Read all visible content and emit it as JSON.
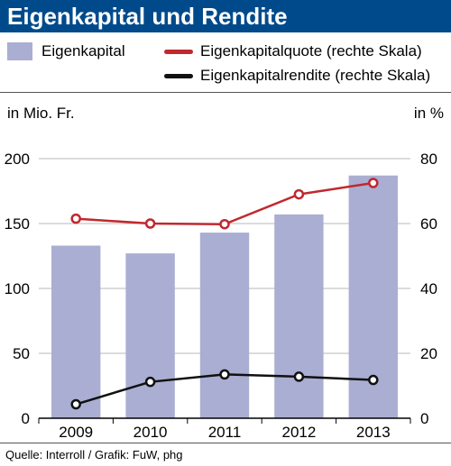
{
  "title": "Eigenkapital und Rendite",
  "legend": {
    "bar_label": "Eigenkapital",
    "line1_label": "Eigenkapitalquote (rechte Skala)",
    "line2_label": "Eigenkapitalrendite (rechte Skala)"
  },
  "units": {
    "left": "in Mio. Fr.",
    "right": "in %"
  },
  "source": "Quelle: Interroll / Grafik: FuW, phg",
  "colors": {
    "title_bg": "#004a8c",
    "bars": "#aaaed2",
    "quote": "#c0282d",
    "rendite": "#111111"
  },
  "chart_data": {
    "type": "bar",
    "categories": [
      "2009",
      "2010",
      "2011",
      "2012",
      "2013"
    ],
    "series": [
      {
        "name": "Eigenkapital",
        "type": "bar",
        "axis": "left",
        "values": [
          133,
          127,
          143,
          157,
          187
        ]
      },
      {
        "name": "Eigenkapitalquote (rechte Skala)",
        "type": "line",
        "axis": "right",
        "values": [
          61.5,
          60,
          59.8,
          69,
          72.5
        ]
      },
      {
        "name": "Eigenkapitalrendite (rechte Skala)",
        "type": "line",
        "axis": "right",
        "values": [
          4.3,
          11.2,
          13.5,
          12.8,
          11.8
        ]
      }
    ],
    "ylim_left": [
      0,
      200
    ],
    "yticks_left": [
      "0",
      "50",
      "100",
      "150",
      "200"
    ],
    "ylim_right": [
      0,
      80
    ],
    "yticks_right": [
      "0",
      "20",
      "40",
      "60",
      "80"
    ],
    "ylabel_left": "in Mio. Fr.",
    "ylabel_right": "in %",
    "grid": true
  }
}
